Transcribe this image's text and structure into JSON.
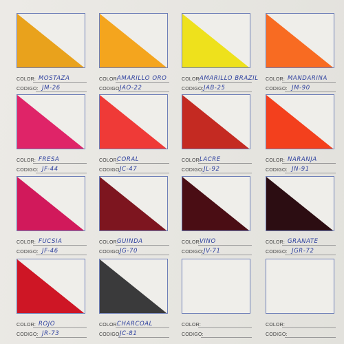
{
  "labels": {
    "color": "COLOR:",
    "code": "CODIGO:"
  },
  "swatches": [
    {
      "name": "MOSTAZA",
      "code": "JM-26",
      "hex": "#e9a21c"
    },
    {
      "name": "AMARILLO ORO",
      "code": "JAO-22",
      "hex": "#f4a51e"
    },
    {
      "name": "AMARILLO BRAZIL",
      "code": "JAB-25",
      "hex": "#eee11c"
    },
    {
      "name": "MANDARINA",
      "code": "JM-90",
      "hex": "#f86b22"
    },
    {
      "name": "FRESA",
      "code": "JF-44",
      "hex": "#df2468"
    },
    {
      "name": "CORAL",
      "code": "JC-47",
      "hex": "#ef3a37"
    },
    {
      "name": "LACRE",
      "code": "JL-92",
      "hex": "#c42a22"
    },
    {
      "name": "NARANJA",
      "code": "JN-91",
      "hex": "#f3401d"
    },
    {
      "name": "FUCSIA",
      "code": "JF-46",
      "hex": "#d1195b"
    },
    {
      "name": "GUINDA",
      "code": "JG-70",
      "hex": "#7d151f"
    },
    {
      "name": "VINO",
      "code": "JV-71",
      "hex": "#4a0d14"
    },
    {
      "name": "GRANATE",
      "code": "JGR-72",
      "hex": "#2c0d12"
    },
    {
      "name": "ROJO",
      "code": "JR-73",
      "hex": "#ce1625"
    },
    {
      "name": "CHARCOAL",
      "code": "JC-81",
      "hex": "#3a3a3b"
    },
    {
      "name": "",
      "code": "",
      "hex": ""
    },
    {
      "name": "",
      "code": "",
      "hex": ""
    }
  ]
}
